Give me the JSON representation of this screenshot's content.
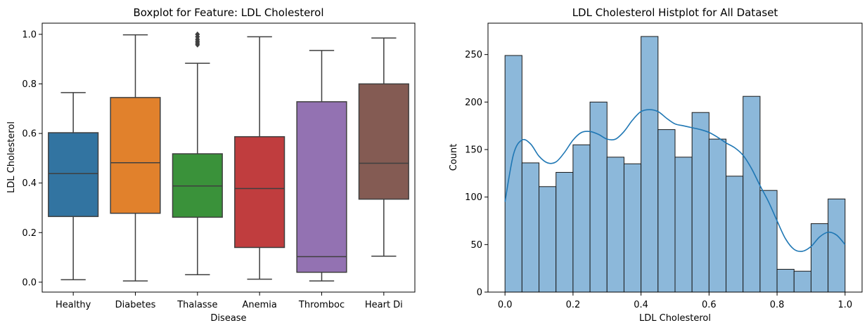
{
  "chart_data": [
    {
      "type": "box",
      "title": "Boxplot for Feature: LDL Cholesterol",
      "xlabel": "Disease",
      "ylabel": "LDL Cholesterol",
      "ylim": [
        -0.04,
        1.045
      ],
      "yticks": [
        0.0,
        0.2,
        0.4,
        0.6,
        0.8,
        1.0
      ],
      "ytick_labels": [
        "0.0",
        "0.2",
        "0.4",
        "0.6",
        "0.8",
        "1.0"
      ],
      "grid": false,
      "categories": [
        "Healthy",
        "Diabetes",
        "Thalasse",
        "Anemia",
        "Thromboc",
        "Heart Di"
      ],
      "boxes": [
        {
          "category": "Healthy",
          "color": "#3274a1",
          "whislo": 0.01,
          "q1": 0.265,
          "median": 0.438,
          "q3": 0.603,
          "whishi": 0.765,
          "fliers": []
        },
        {
          "category": "Diabetes",
          "color": "#e1812c",
          "whislo": 0.005,
          "q1": 0.278,
          "median": 0.482,
          "q3": 0.745,
          "whishi": 0.998,
          "fliers": []
        },
        {
          "category": "Thalasse",
          "color": "#3a923a",
          "whislo": 0.03,
          "q1": 0.262,
          "median": 0.388,
          "q3": 0.518,
          "whishi": 0.883,
          "fliers": [
            0.958,
            0.965,
            0.972,
            0.98,
            0.99,
            1.0
          ]
        },
        {
          "category": "Anemia",
          "color": "#c03d3e",
          "whislo": 0.012,
          "q1": 0.14,
          "median": 0.378,
          "q3": 0.587,
          "whishi": 0.99,
          "fliers": []
        },
        {
          "category": "Thromboc",
          "color": "#9372b2",
          "whislo": 0.005,
          "q1": 0.04,
          "median": 0.103,
          "q3": 0.728,
          "whishi": 0.935,
          "fliers": []
        },
        {
          "category": "Heart Di",
          "color": "#845b53",
          "whislo": 0.105,
          "q1": 0.335,
          "median": 0.48,
          "q3": 0.8,
          "whishi": 0.985,
          "fliers": []
        }
      ]
    },
    {
      "type": "histogram",
      "title": "LDL Cholesterol Histplot for All Dataset",
      "xlabel": "LDL Cholesterol",
      "ylabel": "Count",
      "xlim": [
        -0.05,
        1.05
      ],
      "ylim": [
        0,
        283
      ],
      "xticks": [
        0.0,
        0.2,
        0.4,
        0.6,
        0.8,
        1.0
      ],
      "xtick_labels": [
        "0.0",
        "0.2",
        "0.4",
        "0.6",
        "0.8",
        "1.0"
      ],
      "yticks": [
        0,
        50,
        100,
        150,
        200,
        250
      ],
      "ytick_labels": [
        "0",
        "50",
        "100",
        "150",
        "200",
        "250"
      ],
      "grid": false,
      "bar_color": "#8cb8da",
      "edge_color": "#1a1a1a",
      "kde_color": "#1f77b4",
      "bin_width": 0.05,
      "bin_edges_start": 0.0,
      "counts": [
        249,
        136,
        111,
        126,
        155,
        200,
        142,
        135,
        269,
        171,
        142,
        189,
        161,
        122,
        206,
        107,
        24,
        22,
        72,
        98
      ],
      "kde": {
        "x": [
          0.0,
          0.025,
          0.05,
          0.075,
          0.1,
          0.125,
          0.15,
          0.175,
          0.2,
          0.225,
          0.25,
          0.275,
          0.3,
          0.325,
          0.35,
          0.375,
          0.4,
          0.425,
          0.45,
          0.475,
          0.5,
          0.525,
          0.55,
          0.575,
          0.6,
          0.625,
          0.65,
          0.675,
          0.7,
          0.725,
          0.75,
          0.775,
          0.8,
          0.825,
          0.85,
          0.875,
          0.9,
          0.925,
          0.95,
          0.975,
          1.0
        ],
        "y": [
          95,
          145,
          160,
          156,
          143,
          136,
          137,
          147,
          160,
          168,
          169,
          166,
          161,
          161,
          169,
          181,
          190,
          192,
          190,
          183,
          177,
          175,
          173,
          171,
          168,
          163,
          157,
          152,
          144,
          130,
          112,
          95,
          75,
          56,
          45,
          43,
          48,
          58,
          63,
          60,
          50
        ]
      }
    }
  ]
}
